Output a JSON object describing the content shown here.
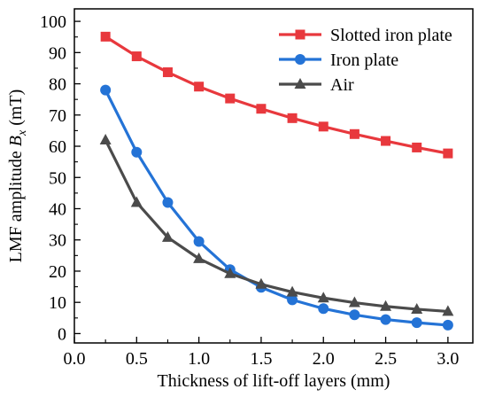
{
  "chart_data": {
    "type": "line",
    "xlabel": "Thickness of lift-off layers (mm)",
    "ylabel": {
      "prefix": "LMF amplitude ",
      "symbol": "B",
      "subscript": "x",
      "unit": " (mT)"
    },
    "xlim": [
      0.0,
      3.2
    ],
    "ylim": [
      -3,
      104
    ],
    "xticks": [
      "0.0",
      "0.5",
      "1.0",
      "1.5",
      "2.0",
      "2.5",
      "3.0"
    ],
    "yticks": [
      "0",
      "10",
      "20",
      "30",
      "40",
      "50",
      "60",
      "70",
      "80",
      "90",
      "100"
    ],
    "grid": false,
    "legend_position": "top-right",
    "x": [
      0.25,
      0.5,
      0.75,
      1.0,
      1.25,
      1.5,
      1.75,
      2.0,
      2.25,
      2.5,
      2.75,
      3.0
    ],
    "series": [
      {
        "name": "Slotted iron plate",
        "color": "#e8383d",
        "marker": "square",
        "values": [
          95.1,
          88.8,
          83.7,
          79.1,
          75.3,
          72.0,
          69.0,
          66.3,
          63.9,
          61.7,
          59.6,
          57.7
        ]
      },
      {
        "name": "Iron plate",
        "color": "#2473d6",
        "marker": "circle",
        "values": [
          78.0,
          58.1,
          42.0,
          29.5,
          20.5,
          14.8,
          10.8,
          8.0,
          6.0,
          4.5,
          3.5,
          2.7
        ]
      },
      {
        "name": "Air",
        "color": "#4b4b4b",
        "marker": "triangle",
        "values": [
          62.0,
          42.0,
          30.8,
          24.0,
          19.2,
          15.8,
          13.3,
          11.4,
          9.9,
          8.7,
          7.8,
          7.1
        ]
      }
    ]
  }
}
